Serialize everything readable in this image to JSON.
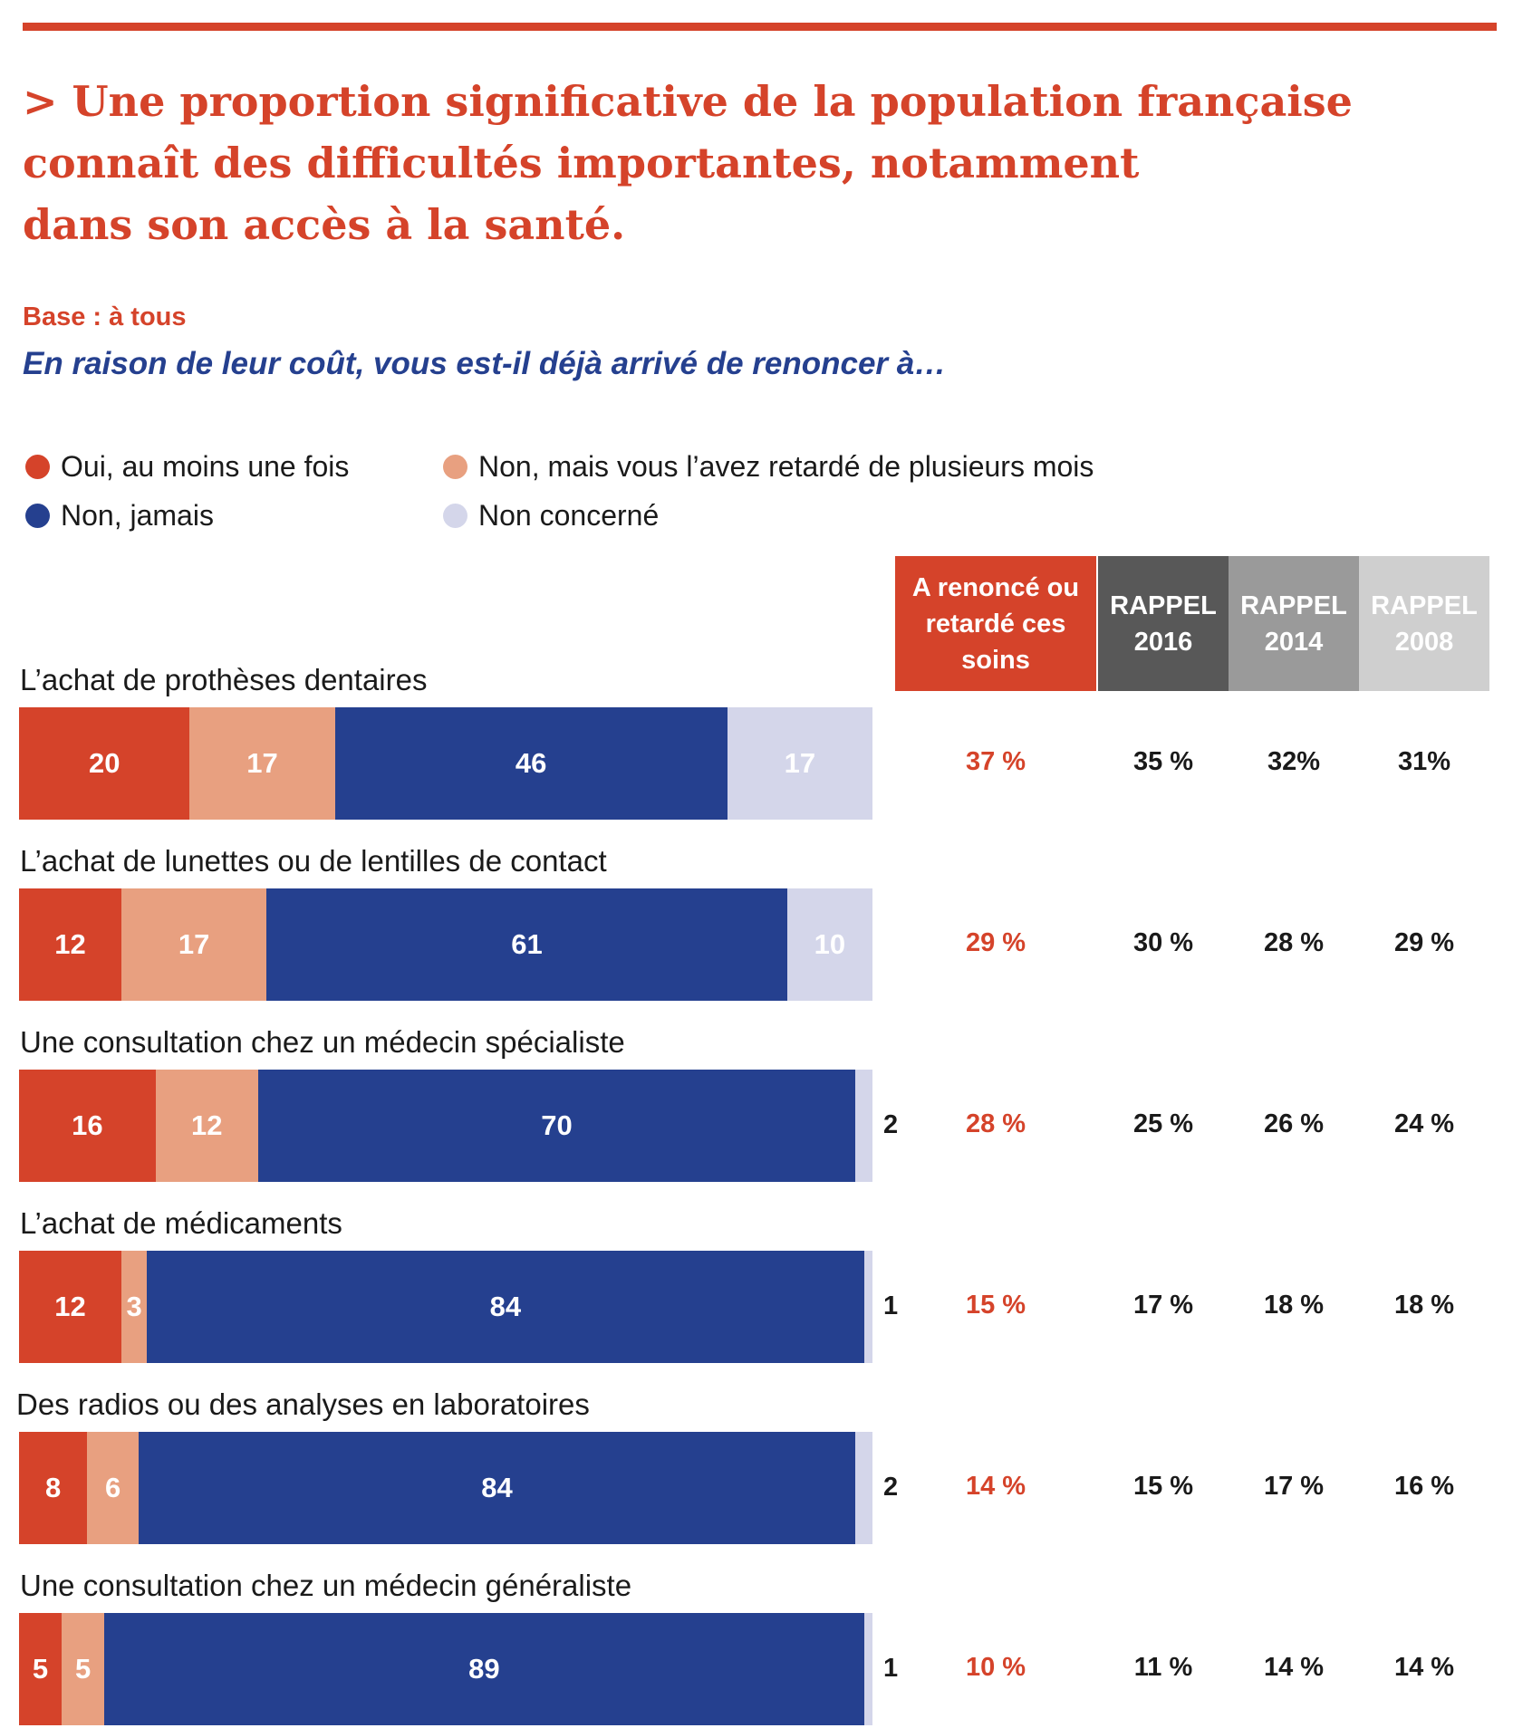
{
  "title": {
    "lines": [
      "> Une proportion significative de la population française",
      "connaît des difficultés importantes, notamment",
      "dans son accès à la santé."
    ]
  },
  "base": "Base : à tous",
  "question": "En raison de leur coût, vous est-il déjà arrivé de renoncer à…",
  "colors": {
    "oui": "#d5432a",
    "retard": "#e8a080",
    "non": "#25408f",
    "non_concerne": "#d4d6ea",
    "accent": "#d5432a",
    "rappel_2016": "#585858",
    "rappel_2014": "#9a9a9a",
    "rappel_2008": "#cfcfcf"
  },
  "legend": [
    {
      "label": "Oui, au moins une fois",
      "color": "#d5432a"
    },
    {
      "label": "Non, mais vous l’avez retardé de plusieurs mois",
      "color": "#e8a080"
    },
    {
      "label": "Non, jamais",
      "color": "#25408f"
    },
    {
      "label": "Non concerné",
      "color": "#d4d6ea"
    }
  ],
  "columns": {
    "main": [
      "A renoncé ou",
      "retardé ces",
      "soins"
    ],
    "rappel_2016": [
      "RAPPEL",
      "2016"
    ],
    "rappel_2014": [
      "RAPPEL",
      "2014"
    ],
    "rappel_2008": [
      "RAPPEL",
      "2008"
    ]
  },
  "chart_data": {
    "type": "bar",
    "orientation": "horizontal-stacked",
    "categories": [
      "L’achat de prothèses dentaires",
      "L’achat de lunettes ou de lentilles de contact",
      "Une consultation chez un médecin spécialiste",
      "L’achat de médicaments",
      "Des radios ou des analyses en laboratoires",
      "Une consultation chez un médecin généraliste"
    ],
    "series": [
      {
        "name": "Oui, au moins une fois",
        "values": [
          20,
          12,
          16,
          12,
          8,
          5
        ]
      },
      {
        "name": "Non, mais vous l’avez retardé de plusieurs mois",
        "values": [
          17,
          17,
          12,
          3,
          6,
          5
        ]
      },
      {
        "name": "Non, jamais",
        "values": [
          46,
          61,
          70,
          84,
          84,
          89
        ]
      },
      {
        "name": "Non concerné",
        "values": [
          17,
          10,
          2,
          1,
          2,
          1
        ]
      }
    ],
    "table": {
      "a_renonce_ou_retarde": [
        "37 %",
        "29 %",
        "28 %",
        "15 %",
        "14 %",
        "10 %"
      ],
      "rappel_2016": [
        "35 %",
        "30 %",
        "25 %",
        "17 %",
        "15 %",
        "11 %"
      ],
      "rappel_2014": [
        "32%",
        "28 %",
        "26 %",
        "18 %",
        "17 %",
        "14 %"
      ],
      "rappel_2008": [
        "31%",
        "29 %",
        "24 %",
        "18 %",
        "16 %",
        "14 %"
      ]
    },
    "xlim": [
      0,
      100
    ]
  }
}
